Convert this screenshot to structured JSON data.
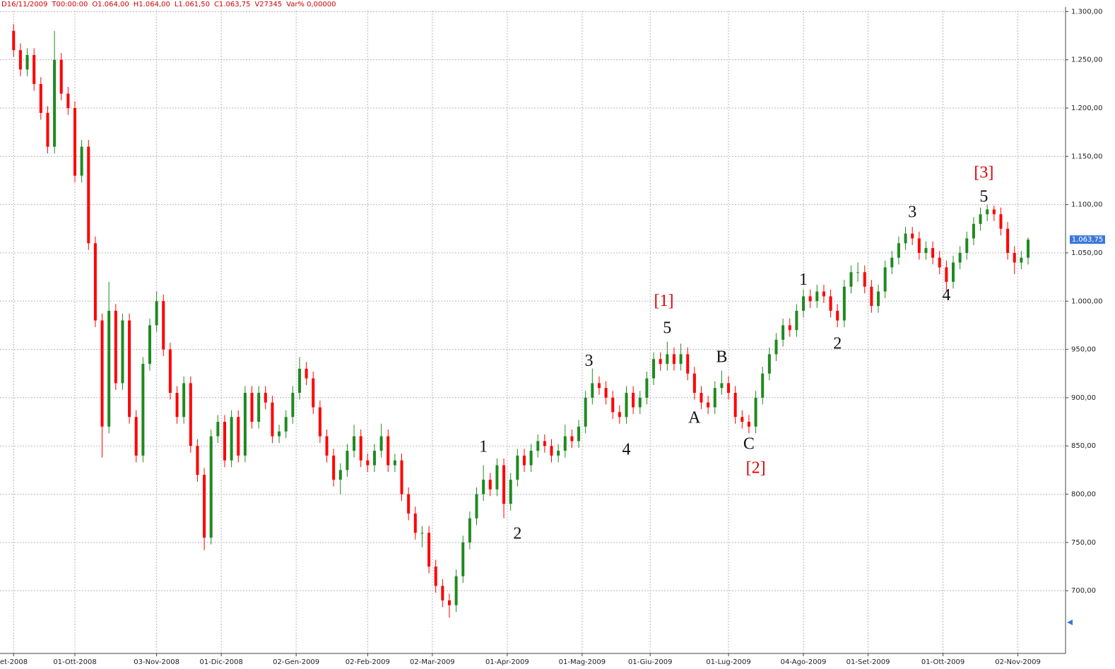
{
  "chart_data": {
    "type": "candlestick",
    "header_items": [
      "D16/11/2009",
      "T00:00:00",
      "O1.064,00",
      "H1.064,00",
      "L1.061,50",
      "C1.063,75",
      "V27345",
      "Var% 0,00000"
    ],
    "up_color": "#1f8a1f",
    "down_color": "#ff0000",
    "grid": true,
    "xlim": [
      -4,
      309
    ],
    "ylim": [
      635,
      1301
    ],
    "xticks": [
      {
        "value": 0,
        "label": "et-2008"
      },
      {
        "value": 18,
        "label": "01-Ott-2008"
      },
      {
        "value": 42,
        "label": "03-Nov-2008"
      },
      {
        "value": 61,
        "label": "01-Dic-2008"
      },
      {
        "value": 83,
        "label": "02-Gen-2009"
      },
      {
        "value": 104,
        "label": "02-Feb-2009"
      },
      {
        "value": 123,
        "label": "02-Mar-2009"
      },
      {
        "value": 145,
        "label": "01-Apr-2009"
      },
      {
        "value": 167,
        "label": "01-Mag-2009"
      },
      {
        "value": 187,
        "label": "01-Giu-2009"
      },
      {
        "value": 210,
        "label": "01-Lug-2009"
      },
      {
        "value": 232,
        "label": "04-Ago-2009"
      },
      {
        "value": 251,
        "label": "01-Set-2009"
      },
      {
        "value": 273,
        "label": "01-Ott-2009"
      },
      {
        "value": 295,
        "label": "02-Nov-2009"
      }
    ],
    "yticks": [
      {
        "value": 700,
        "label": "700,00"
      },
      {
        "value": 750,
        "label": "750,00"
      },
      {
        "value": 800,
        "label": "800,00"
      },
      {
        "value": 850,
        "label": "850,00"
      },
      {
        "value": 900,
        "label": "900,00"
      },
      {
        "value": 950,
        "label": "950,00"
      },
      {
        "value": 1000,
        "label": "1.000,00"
      },
      {
        "value": 1050,
        "label": "1.050,00"
      },
      {
        "value": 1100,
        "label": "1.100,00"
      },
      {
        "value": 1150,
        "label": "1.150,00"
      },
      {
        "value": 1200,
        "label": "1.200,00"
      },
      {
        "value": 1250,
        "label": "1.250,00"
      },
      {
        "value": 1300,
        "label": "1.300,00"
      }
    ],
    "last_price": {
      "value": 1063.75,
      "label": "1.063,75",
      "color": "#3a78d8"
    },
    "x": [
      0,
      2,
      4,
      6,
      8,
      10,
      12,
      14,
      16,
      18,
      20,
      22,
      24,
      26,
      28,
      30,
      32,
      34,
      36,
      38,
      40,
      42,
      44,
      46,
      48,
      50,
      52,
      54,
      56,
      58,
      60,
      62,
      64,
      66,
      68,
      70,
      72,
      74,
      76,
      78,
      80,
      82,
      84,
      86,
      88,
      90,
      92,
      94,
      96,
      98,
      100,
      102,
      104,
      106,
      108,
      110,
      112,
      114,
      116,
      118,
      120,
      122,
      124,
      126,
      128,
      130,
      132,
      134,
      136,
      138,
      140,
      142,
      144,
      146,
      148,
      150,
      152,
      154,
      156,
      158,
      160,
      162,
      164,
      166,
      168,
      170,
      172,
      174,
      176,
      178,
      180,
      182,
      184,
      186,
      188,
      190,
      192,
      194,
      196,
      198,
      200,
      202,
      204,
      206,
      208,
      210,
      212,
      214,
      216,
      218,
      220,
      222,
      224,
      226,
      228,
      230,
      232,
      234,
      236,
      238,
      240,
      242,
      244,
      246,
      248,
      250,
      252,
      254,
      256,
      258,
      260,
      262,
      264,
      266,
      268,
      270,
      272,
      274,
      276,
      278,
      280,
      282,
      284,
      286,
      288,
      290,
      292,
      294,
      296,
      298
    ],
    "open": [
      1280,
      1260,
      1240,
      1255,
      1225,
      1195,
      1160,
      1250,
      1215,
      1200,
      1130,
      1160,
      1060,
      980,
      870,
      990,
      915,
      980,
      880,
      840,
      935,
      975,
      1000,
      950,
      905,
      880,
      915,
      850,
      820,
      755,
      860,
      875,
      835,
      880,
      840,
      905,
      875,
      905,
      895,
      860,
      865,
      880,
      905,
      930,
      920,
      890,
      860,
      840,
      815,
      825,
      845,
      860,
      835,
      830,
      845,
      860,
      830,
      835,
      800,
      780,
      760,
      760,
      725,
      705,
      690,
      685,
      715,
      750,
      775,
      800,
      815,
      805,
      830,
      790,
      815,
      840,
      830,
      845,
      855,
      850,
      840,
      845,
      860,
      855,
      870,
      900,
      915,
      910,
      900,
      885,
      880,
      905,
      890,
      900,
      920,
      940,
      935,
      945,
      935,
      945,
      925,
      905,
      895,
      890,
      910,
      915,
      905,
      880,
      875,
      870,
      900,
      925,
      945,
      960,
      975,
      970,
      990,
      1005,
      1000,
      1010,
      1005,
      990,
      980,
      1015,
      1030,
      1030,
      1015,
      995,
      1010,
      1035,
      1045,
      1060,
      1070,
      1065,
      1050,
      1055,
      1045,
      1035,
      1020,
      1040,
      1050,
      1065,
      1080,
      1090,
      1095,
      1090,
      1075,
      1050,
      1040,
      1045
    ],
    "high": [
      1287,
      1267,
      1262,
      1262,
      1232,
      1202,
      1280,
      1257,
      1222,
      1207,
      1167,
      1167,
      1067,
      987,
      1020,
      997,
      987,
      987,
      887,
      942,
      982,
      1010,
      1007,
      957,
      912,
      922,
      922,
      857,
      827,
      867,
      882,
      882,
      887,
      887,
      912,
      912,
      912,
      912,
      902,
      872,
      887,
      912,
      942,
      937,
      927,
      897,
      867,
      847,
      832,
      852,
      872,
      867,
      842,
      852,
      873,
      867,
      842,
      842,
      807,
      787,
      767,
      767,
      732,
      712,
      697,
      722,
      757,
      782,
      807,
      830,
      822,
      837,
      837,
      822,
      847,
      847,
      852,
      862,
      862,
      857,
      852,
      872,
      867,
      877,
      907,
      930,
      922,
      917,
      907,
      892,
      912,
      912,
      907,
      927,
      947,
      947,
      958,
      952,
      956,
      952,
      932,
      912,
      902,
      917,
      928,
      922,
      912,
      887,
      882,
      907,
      932,
      952,
      967,
      982,
      982,
      997,
      1012,
      1012,
      1017,
      1017,
      1012,
      997,
      1022,
      1037,
      1040,
      1037,
      1022,
      1017,
      1042,
      1052,
      1067,
      1077,
      1077,
      1072,
      1062,
      1062,
      1052,
      1042,
      1047,
      1057,
      1072,
      1087,
      1097,
      1100,
      1099,
      1097,
      1082,
      1057,
      1052,
      1066
    ],
    "low": [
      1253,
      1233,
      1233,
      1218,
      1188,
      1153,
      1153,
      1208,
      1193,
      1123,
      1123,
      1053,
      973,
      838,
      863,
      908,
      908,
      873,
      833,
      833,
      928,
      968,
      943,
      898,
      873,
      873,
      843,
      813,
      742,
      748,
      853,
      828,
      828,
      833,
      833,
      868,
      868,
      888,
      853,
      853,
      858,
      873,
      898,
      913,
      883,
      853,
      833,
      808,
      800,
      818,
      838,
      828,
      823,
      823,
      838,
      823,
      823,
      793,
      773,
      753,
      745,
      718,
      698,
      683,
      672,
      678,
      708,
      743,
      768,
      793,
      798,
      798,
      775,
      783,
      808,
      823,
      823,
      838,
      843,
      833,
      833,
      838,
      848,
      848,
      863,
      893,
      903,
      893,
      878,
      873,
      873,
      883,
      883,
      893,
      913,
      928,
      928,
      928,
      928,
      918,
      898,
      888,
      883,
      883,
      903,
      898,
      873,
      868,
      863,
      863,
      893,
      918,
      938,
      953,
      963,
      963,
      983,
      993,
      993,
      998,
      983,
      973,
      973,
      1008,
      1020,
      1008,
      988,
      988,
      1003,
      1028,
      1038,
      1053,
      1058,
      1043,
      1043,
      1038,
      1028,
      1010,
      1013,
      1033,
      1043,
      1058,
      1073,
      1083,
      1083,
      1068,
      1043,
      1028,
      1033,
      1038
    ],
    "close": [
      1260,
      1240,
      1255,
      1225,
      1195,
      1160,
      1250,
      1215,
      1200,
      1130,
      1160,
      1060,
      980,
      870,
      990,
      915,
      980,
      880,
      840,
      935,
      975,
      1000,
      950,
      905,
      880,
      915,
      850,
      820,
      755,
      860,
      875,
      835,
      880,
      840,
      905,
      875,
      905,
      895,
      860,
      865,
      880,
      905,
      930,
      920,
      890,
      860,
      840,
      815,
      825,
      845,
      860,
      835,
      830,
      845,
      860,
      830,
      835,
      800,
      780,
      760,
      760,
      725,
      705,
      690,
      685,
      715,
      750,
      775,
      800,
      815,
      805,
      830,
      790,
      815,
      840,
      830,
      845,
      855,
      850,
      840,
      845,
      860,
      855,
      870,
      900,
      915,
      910,
      900,
      885,
      880,
      905,
      890,
      900,
      920,
      940,
      935,
      945,
      935,
      945,
      925,
      905,
      895,
      890,
      910,
      915,
      905,
      880,
      875,
      870,
      900,
      925,
      945,
      960,
      975,
      970,
      990,
      1005,
      1000,
      1010,
      1005,
      990,
      980,
      1015,
      1030,
      1030,
      1015,
      995,
      1010,
      1035,
      1045,
      1060,
      1070,
      1065,
      1050,
      1055,
      1045,
      1035,
      1020,
      1040,
      1050,
      1065,
      1080,
      1090,
      1095,
      1090,
      1075,
      1050,
      1040,
      1045,
      1063.75
    ],
    "annotations": [
      {
        "text": "1",
        "x": 138,
        "y": 848,
        "color": "#111111"
      },
      {
        "text": "2",
        "x": 148,
        "y": 758,
        "color": "#111111"
      },
      {
        "text": "3",
        "x": 169,
        "y": 937,
        "color": "#111111"
      },
      {
        "text": "4",
        "x": 180,
        "y": 845,
        "color": "#111111"
      },
      {
        "text": "5",
        "x": 192,
        "y": 971,
        "color": "#111111"
      },
      {
        "text": "[1]",
        "x": 191,
        "y": 999,
        "color": "#e00000"
      },
      {
        "text": "A",
        "x": 200,
        "y": 878,
        "color": "#111111"
      },
      {
        "text": "B",
        "x": 208,
        "y": 941,
        "color": "#111111"
      },
      {
        "text": "C",
        "x": 216,
        "y": 851,
        "color": "#111111"
      },
      {
        "text": "[2]",
        "x": 218,
        "y": 826,
        "color": "#e00000"
      },
      {
        "text": "1",
        "x": 232,
        "y": 1021,
        "color": "#111111"
      },
      {
        "text": "2",
        "x": 242,
        "y": 955,
        "color": "#111111"
      },
      {
        "text": "3",
        "x": 264,
        "y": 1091,
        "color": "#111111"
      },
      {
        "text": "4",
        "x": 274,
        "y": 1005,
        "color": "#111111"
      },
      {
        "text": "5",
        "x": 285,
        "y": 1107,
        "color": "#111111"
      },
      {
        "text": "[3]",
        "x": 285,
        "y": 1132,
        "color": "#e00000"
      }
    ]
  }
}
